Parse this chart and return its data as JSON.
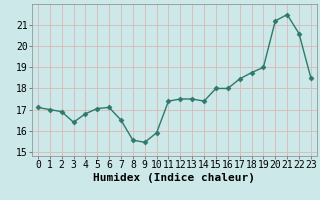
{
  "x": [
    0,
    1,
    2,
    3,
    4,
    5,
    6,
    7,
    8,
    9,
    10,
    11,
    12,
    13,
    14,
    15,
    16,
    17,
    18,
    19,
    20,
    21,
    22,
    23
  ],
  "y": [
    17.1,
    17.0,
    16.9,
    16.4,
    16.8,
    17.05,
    17.1,
    16.5,
    15.55,
    15.45,
    15.9,
    17.4,
    17.5,
    17.5,
    17.4,
    18.0,
    18.0,
    18.45,
    18.75,
    19.0,
    21.2,
    21.5,
    20.6,
    18.5
  ],
  "line_color": "#2d7a6a",
  "marker": "D",
  "marker_size": 2.5,
  "bg_color": "#cce8e8",
  "grid_color": "#d8b8b8",
  "xlabel": "Humidex (Indice chaleur)",
  "ylim": [
    14.8,
    22.0
  ],
  "yticks": [
    15,
    16,
    17,
    18,
    19,
    20,
    21
  ],
  "xticks": [
    0,
    1,
    2,
    3,
    4,
    5,
    6,
    7,
    8,
    9,
    10,
    11,
    12,
    13,
    14,
    15,
    16,
    17,
    18,
    19,
    20,
    21,
    22,
    23
  ],
  "xlabel_fontsize": 8,
  "tick_fontsize": 7,
  "linewidth": 1.0
}
